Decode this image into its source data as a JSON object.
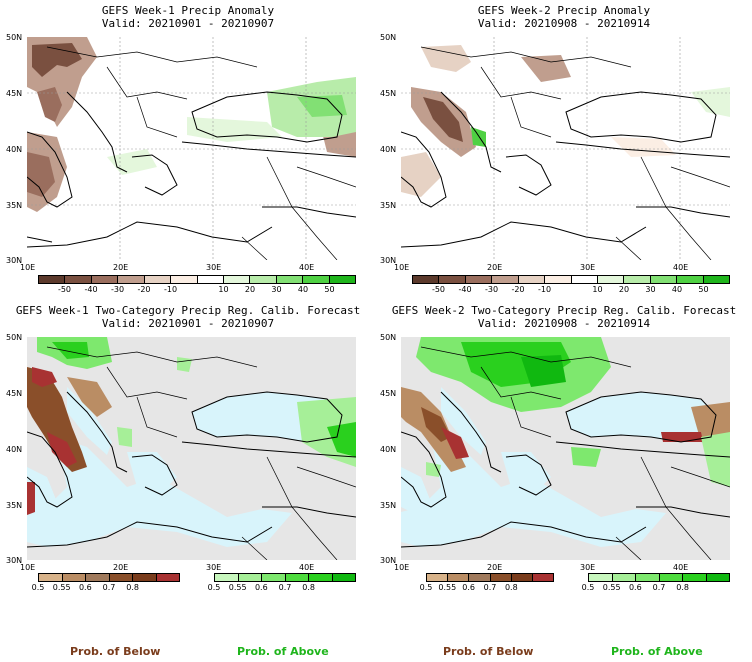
{
  "panels": [
    {
      "title_line1": "GEFS Week-1 Precip Anomaly",
      "title_line2": "Valid: 20210901 - 20210907"
    },
    {
      "title_line1": "GEFS Week-2 Precip Anomaly",
      "title_line2": "Valid: 20210908 - 20210914"
    },
    {
      "title_line1": "GEFS Week-1 Two-Category Precip Reg. Calib. Forecast",
      "title_line2": "Valid: 20210901 - 20210907"
    },
    {
      "title_line1": "GEFS Week-2 Two-Category Precip Reg. Calib. Forecast",
      "title_line2": "Valid: 20210908 - 20210914"
    }
  ],
  "axes": {
    "lat_labels": [
      "50N",
      "45N",
      "40N",
      "35N",
      "30N"
    ],
    "lon_labels": [
      "10E",
      "20E",
      "30E",
      "40E"
    ]
  },
  "anomaly_colorbar": {
    "labels": [
      "-50",
      "-40",
      "-30",
      "-20",
      "-10",
      "10",
      "20",
      "30",
      "40",
      "50"
    ],
    "colors": [
      "#5c3a2c",
      "#7a5040",
      "#9a6e5e",
      "#c09e8e",
      "#e6d2c4",
      "#fbeee4",
      "#ffffff",
      "#e4f7dc",
      "#b8ecaa",
      "#82e074",
      "#4fd143",
      "#1fb51c"
    ]
  },
  "prob_colorbar_below": {
    "labels": [
      "0.5",
      "0.55",
      "0.6",
      "0.7",
      "0.8"
    ],
    "colors": [
      "#d8b38a",
      "#ba8d64",
      "#a07a5c",
      "#8a4f2a",
      "#7a3c1c",
      "#a83232"
    ]
  },
  "prob_colorbar_above": {
    "labels": [
      "0.5",
      "0.55",
      "0.6",
      "0.7",
      "0.8"
    ],
    "colors": [
      "#c8f7be",
      "#a6ef98",
      "#7ee86e",
      "#4edc3e",
      "#2ad01e",
      "#10b810"
    ]
  },
  "legend": {
    "below_title": "Prob. of Below",
    "above_title": "Prob. of Above",
    "below_color": "#7a3c1c",
    "above_color": "#1fb51c"
  },
  "map_colors": {
    "ocean_fill": "#d8f4fb",
    "land_fill": "#e6e6e6",
    "anomaly_bg": "#ffffff"
  }
}
